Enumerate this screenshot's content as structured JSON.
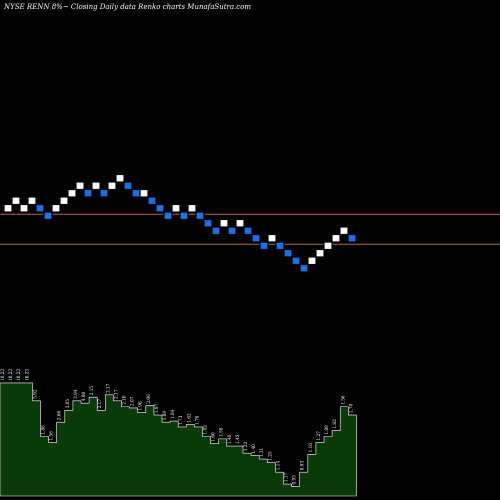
{
  "title": "NYSE RENN  8%~  Closing Daily data  Renko  charts MunafaSutra.com",
  "colors": {
    "background": "#000000",
    "up_brick": "#ffffff",
    "down_brick": "#1e6fe0",
    "brick_border": "#000000",
    "reference_line": "#b0673a",
    "volume_fill": "#0a3a0a",
    "volume_stroke": "#ffffff",
    "label": "#ffffff"
  },
  "chart_data": {
    "type": "renko",
    "bricks": [
      {
        "i": 0,
        "level": 0,
        "dir": "up"
      },
      {
        "i": 1,
        "level": 1,
        "dir": "up"
      },
      {
        "i": 2,
        "level": 0,
        "dir": "up"
      },
      {
        "i": 3,
        "level": 1,
        "dir": "up"
      },
      {
        "i": 4,
        "level": 0,
        "dir": "down"
      },
      {
        "i": 5,
        "level": -1,
        "dir": "down"
      },
      {
        "i": 6,
        "level": 0,
        "dir": "up"
      },
      {
        "i": 7,
        "level": 1,
        "dir": "up"
      },
      {
        "i": 8,
        "level": 2,
        "dir": "up"
      },
      {
        "i": 9,
        "level": 3,
        "dir": "up"
      },
      {
        "i": 10,
        "level": 2,
        "dir": "down"
      },
      {
        "i": 11,
        "level": 3,
        "dir": "up"
      },
      {
        "i": 12,
        "level": 2,
        "dir": "down"
      },
      {
        "i": 13,
        "level": 3,
        "dir": "up"
      },
      {
        "i": 14,
        "level": 4,
        "dir": "up"
      },
      {
        "i": 15,
        "level": 3,
        "dir": "down"
      },
      {
        "i": 16,
        "level": 2,
        "dir": "down"
      },
      {
        "i": 17,
        "level": 2,
        "dir": "up"
      },
      {
        "i": 18,
        "level": 1,
        "dir": "down"
      },
      {
        "i": 19,
        "level": 0,
        "dir": "down"
      },
      {
        "i": 20,
        "level": -1,
        "dir": "down"
      },
      {
        "i": 21,
        "level": 0,
        "dir": "up"
      },
      {
        "i": 22,
        "level": -1,
        "dir": "down"
      },
      {
        "i": 23,
        "level": 0,
        "dir": "up"
      },
      {
        "i": 24,
        "level": -1,
        "dir": "down"
      },
      {
        "i": 25,
        "level": -2,
        "dir": "down"
      },
      {
        "i": 26,
        "level": -3,
        "dir": "down"
      },
      {
        "i": 27,
        "level": -2,
        "dir": "up"
      },
      {
        "i": 28,
        "level": -3,
        "dir": "down"
      },
      {
        "i": 29,
        "level": -2,
        "dir": "up"
      },
      {
        "i": 30,
        "level": -3,
        "dir": "down"
      },
      {
        "i": 31,
        "level": -4,
        "dir": "down"
      },
      {
        "i": 32,
        "level": -5,
        "dir": "down"
      },
      {
        "i": 33,
        "level": -4,
        "dir": "up"
      },
      {
        "i": 34,
        "level": -5,
        "dir": "down"
      },
      {
        "i": 35,
        "level": -6,
        "dir": "down"
      },
      {
        "i": 36,
        "level": -7,
        "dir": "down"
      },
      {
        "i": 37,
        "level": -8,
        "dir": "down"
      },
      {
        "i": 38,
        "level": -7,
        "dir": "up"
      },
      {
        "i": 39,
        "level": -6,
        "dir": "up"
      },
      {
        "i": 40,
        "level": -5,
        "dir": "up"
      },
      {
        "i": 41,
        "level": -4,
        "dir": "up"
      },
      {
        "i": 42,
        "level": -3,
        "dir": "up"
      },
      {
        "i": 43,
        "level": -4,
        "dir": "down"
      }
    ],
    "reference_levels": [
      -0.3,
      -4.3
    ],
    "volume": {
      "heights": [
        0.95,
        0.95,
        0.95,
        0.95,
        0.8,
        0.5,
        0.45,
        0.62,
        0.72,
        0.8,
        0.78,
        0.83,
        0.72,
        0.85,
        0.8,
        0.75,
        0.74,
        0.7,
        0.76,
        0.68,
        0.62,
        0.63,
        0.58,
        0.6,
        0.58,
        0.5,
        0.44,
        0.48,
        0.42,
        0.42,
        0.36,
        0.34,
        0.31,
        0.28,
        0.2,
        0.1,
        0.08,
        0.2,
        0.35,
        0.45,
        0.5,
        0.55,
        0.75,
        0.68
      ],
      "labels": [
        "10.23",
        "10.23",
        "10.23",
        "10.23",
        "5.92",
        "1.86",
        "1.56",
        "2.66",
        "3.05",
        "3.94",
        "4.00",
        "2.15",
        "2.17",
        "2.17",
        "2.17",
        "2.10",
        "2.07",
        "1.96",
        "2.06",
        "1.97",
        "1.89",
        "1.84",
        "1.73",
        "1.62",
        "1.76",
        "1.82",
        "1.60",
        "1.58",
        "1.40",
        "1.45",
        "1.22",
        "1.40",
        "1.31",
        "1.25",
        "1.14",
        "1.17",
        "0.93",
        "0.93",
        "1.16",
        "1.27",
        "1.89",
        "1.82",
        "1.56",
        "1.70"
      ]
    }
  }
}
